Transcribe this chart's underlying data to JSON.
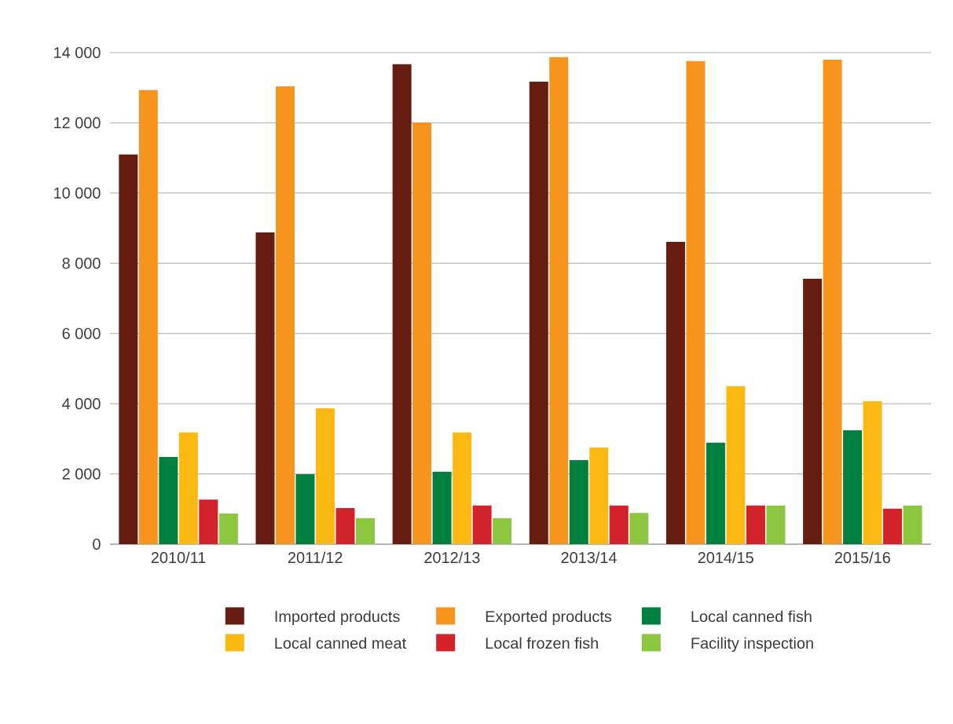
{
  "chart_data": {
    "type": "bar",
    "categories": [
      "2010/11",
      "2011/12",
      "2012/13",
      "2013/14",
      "2014/15",
      "2015/16"
    ],
    "series": [
      {
        "name": "Imported products",
        "color": "#661c10",
        "values": [
          11100,
          8880,
          13670,
          13170,
          8610,
          7560
        ]
      },
      {
        "name": "Exported products",
        "color": "#f7941e",
        "values": [
          12930,
          13040,
          12010,
          13870,
          13760,
          13800
        ]
      },
      {
        "name": "Local canned fish",
        "color": "#00803e",
        "values": [
          2480,
          1990,
          2060,
          2390,
          2890,
          3240
        ]
      },
      {
        "name": "Local canned meat",
        "color": "#fdb913",
        "values": [
          3180,
          3870,
          3180,
          2750,
          4500,
          4070
        ]
      },
      {
        "name": "Local frozen fish",
        "color": "#d2232a",
        "values": [
          1270,
          1030,
          1100,
          1100,
          1100,
          1010
        ]
      },
      {
        "name": "Facility inspection",
        "color": "#8dc63f",
        "values": [
          870,
          740,
          740,
          890,
          1100,
          1100
        ]
      }
    ],
    "ylim": [
      0,
      14000
    ],
    "yticks": [
      {
        "value": 0,
        "label": "0"
      },
      {
        "value": 2000,
        "label": "2 000"
      },
      {
        "value": 4000,
        "label": "4 000"
      },
      {
        "value": 6000,
        "label": "6 000"
      },
      {
        "value": 8000,
        "label": "8 000"
      },
      {
        "value": 10000,
        "label": "10 000"
      },
      {
        "value": 12000,
        "label": "12 000"
      },
      {
        "value": 14000,
        "label": "14 000"
      }
    ],
    "grid": "y",
    "legend": "bottom"
  }
}
